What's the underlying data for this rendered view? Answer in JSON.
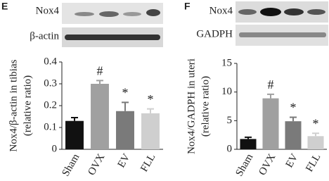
{
  "chart_data": [
    {
      "type": "bar",
      "panel": "E",
      "blot_labels": [
        "Nox4",
        "β-actin"
      ],
      "ylabel": [
        "Nox4/β-actin  in tibias",
        "(relative ratio)"
      ],
      "categories": [
        "Sham",
        "OVX",
        "EV",
        "FLL"
      ],
      "values": [
        0.13,
        0.3,
        0.175,
        0.165
      ],
      "errors": [
        0.015,
        0.015,
        0.04,
        0.02
      ],
      "bar_labels": [
        null,
        "#",
        "*",
        "*"
      ],
      "colors": [
        "#111111",
        "#a0a0a0",
        "#7a7a7a",
        "#cfcfcf"
      ],
      "ylim": [
        0,
        0.4
      ],
      "yticks": [
        0,
        0.1,
        0.2,
        0.3,
        0.4
      ]
    },
    {
      "type": "bar",
      "panel": "F",
      "blot_labels": [
        "Nox4",
        "GADPH"
      ],
      "ylabel": [
        "Nox4/GADPH in uteri",
        "(relative ratio)"
      ],
      "categories": [
        "Sham",
        "OVX",
        "EV",
        "FLL"
      ],
      "values": [
        1.8,
        8.9,
        4.9,
        2.3
      ],
      "errors": [
        0.3,
        0.7,
        0.7,
        0.5
      ],
      "bar_labels": [
        null,
        "#",
        "*",
        "*"
      ],
      "colors": [
        "#111111",
        "#a0a0a0",
        "#7a7a7a",
        "#cfcfcf"
      ],
      "ylim": [
        0,
        15
      ],
      "yticks": [
        0,
        5,
        10,
        15
      ]
    }
  ]
}
